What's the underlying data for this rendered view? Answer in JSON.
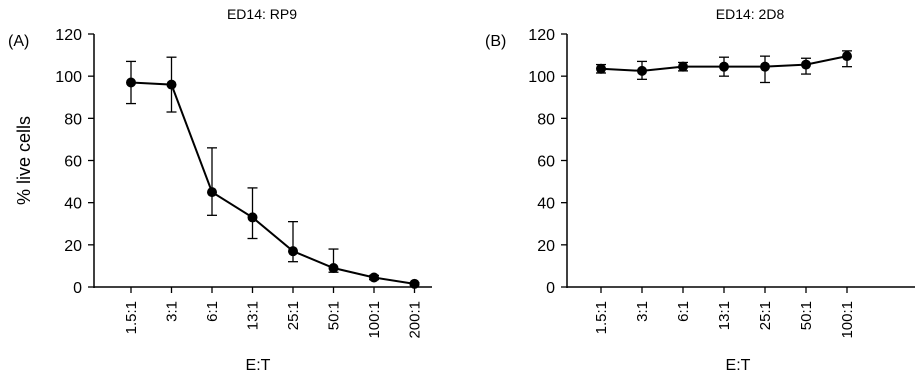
{
  "chart_data": [
    {
      "panel_label": "(A)",
      "type": "line",
      "title": "ED14: RP9",
      "xlabel": "E:T",
      "ylabel": "% live cells",
      "ylim": [
        0,
        120
      ],
      "yticks": [
        "0",
        "20",
        "40",
        "60",
        "80",
        "100",
        "120"
      ],
      "categories": [
        "1.5:1",
        "3:1",
        "6:1",
        "13:1",
        "25:1",
        "50:1",
        "100:1",
        "200:1"
      ],
      "values": [
        97,
        96,
        45,
        33,
        17,
        9,
        4.5,
        1.5
      ],
      "err_upper": [
        107,
        109,
        66,
        47,
        31,
        18,
        5.5,
        2
      ],
      "err_lower": [
        87,
        83,
        34,
        23,
        12,
        7,
        3.5,
        1
      ],
      "grid": false
    },
    {
      "panel_label": "(B)",
      "type": "line",
      "title": "ED14: 2D8",
      "xlabel": "E:T",
      "ylabel": "",
      "ylim": [
        0,
        120
      ],
      "yticks": [
        "0",
        "20",
        "40",
        "60",
        "80",
        "100",
        "120"
      ],
      "categories": [
        "1.5:1",
        "3:1",
        "6:1",
        "13:1",
        "25:1",
        "50:1",
        "100:1"
      ],
      "values": [
        103.5,
        102.5,
        104.5,
        104.5,
        104.5,
        105.5,
        109.5
      ],
      "err_upper": [
        105.5,
        107,
        106.5,
        109,
        109.5,
        108.5,
        112
      ],
      "err_lower": [
        101.5,
        98.5,
        102.5,
        100,
        97,
        101,
        104.5
      ],
      "grid": false
    }
  ]
}
